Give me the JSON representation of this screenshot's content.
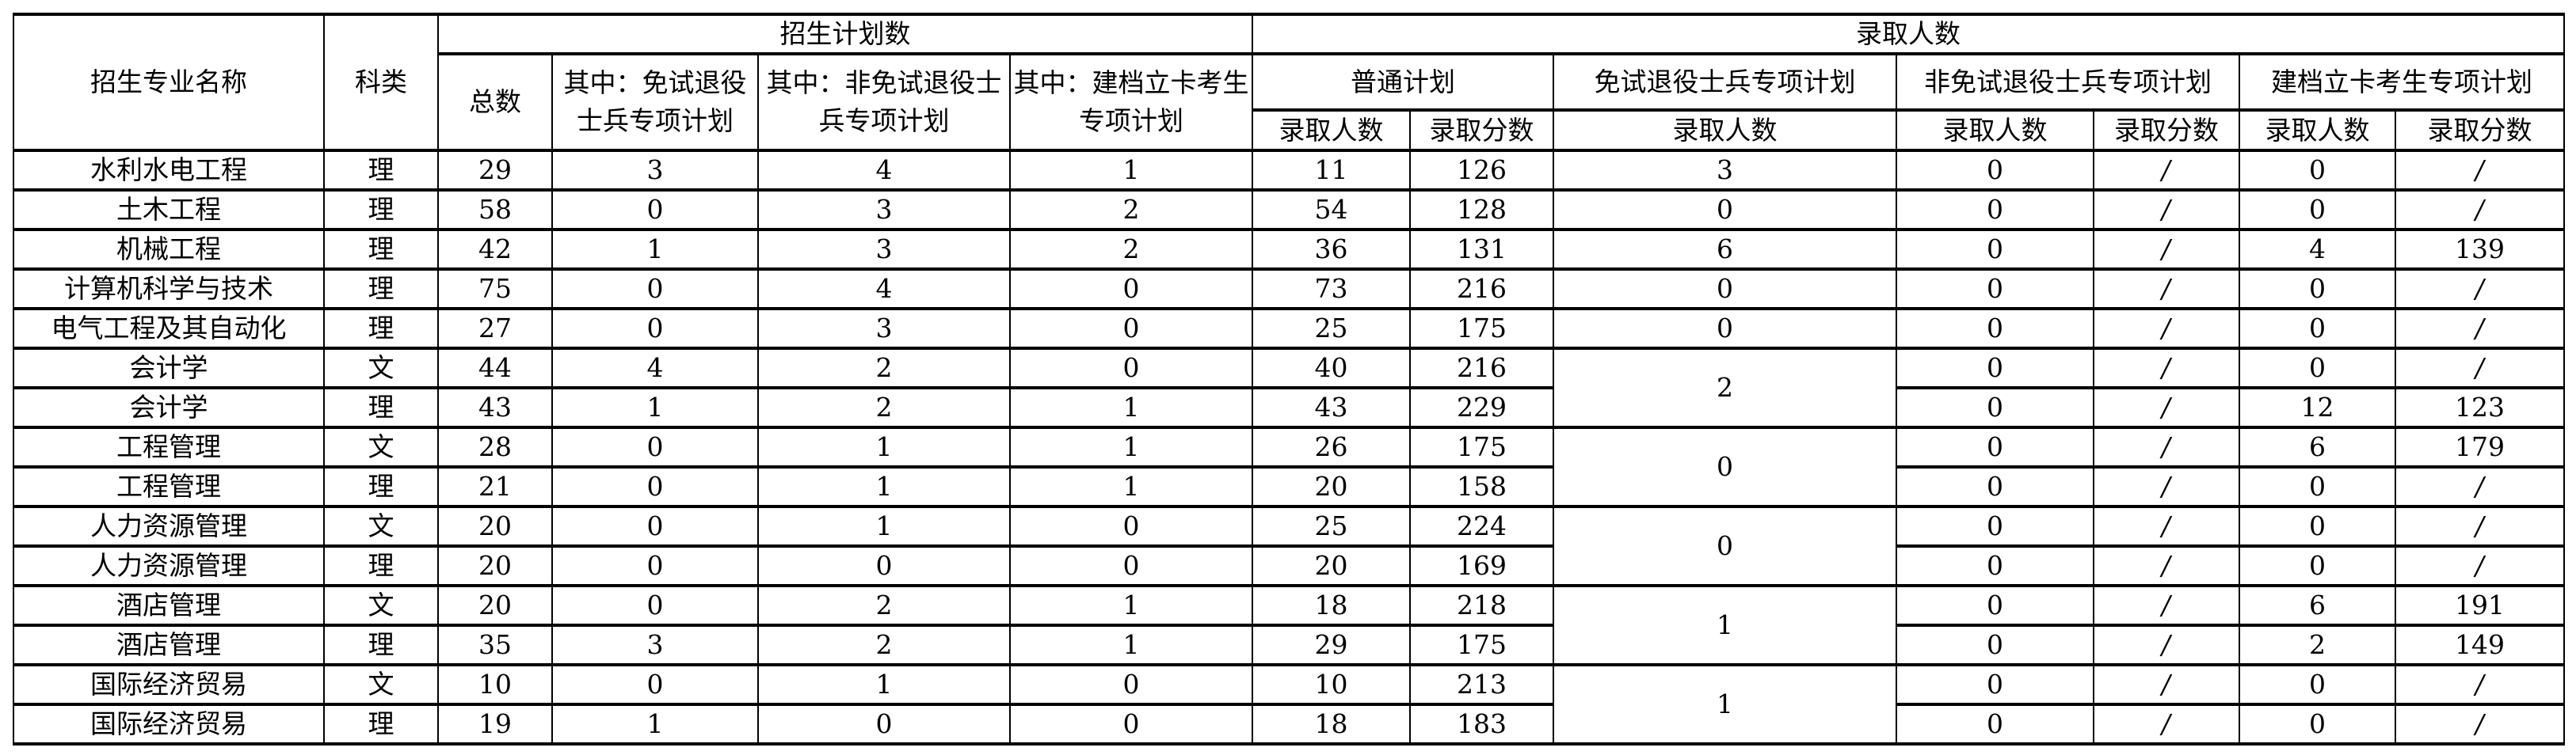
{
  "headers": {
    "major": "招生专业名称",
    "category": "科类",
    "plan_group": "招生计划数",
    "admit_group": "录取人数",
    "total": "总数",
    "plan_exempt": "其中：免试退役士兵专项计划",
    "plan_nonexempt": "其中：非免试退役士兵专项计划",
    "plan_poverty": "其中：建档立卡考生专项计划",
    "regular": "普通计划",
    "exempt": "免试退役士兵专项计划",
    "nonexempt": "非免试退役士兵专项计划",
    "poverty": "建档立卡考生专项计划",
    "admitted_count": "录取人数",
    "admitted_score": "录取分数"
  },
  "rows": [
    {
      "major": "水利水电工程",
      "cat": "理",
      "total": "29",
      "p_ex": "3",
      "p_nonex": "4",
      "p_pov": "1",
      "reg_n": "11",
      "reg_s": "126",
      "ex_n": "3",
      "nonex_n": "0",
      "nonex_s": "/",
      "pov_n": "0",
      "pov_s": "/"
    },
    {
      "major": "土木工程",
      "cat": "理",
      "total": "58",
      "p_ex": "0",
      "p_nonex": "3",
      "p_pov": "2",
      "reg_n": "54",
      "reg_s": "128",
      "ex_n": "0",
      "nonex_n": "0",
      "nonex_s": "/",
      "pov_n": "0",
      "pov_s": "/"
    },
    {
      "major": "机械工程",
      "cat": "理",
      "total": "42",
      "p_ex": "1",
      "p_nonex": "3",
      "p_pov": "2",
      "reg_n": "36",
      "reg_s": "131",
      "ex_n": "6",
      "nonex_n": "0",
      "nonex_s": "/",
      "pov_n": "4",
      "pov_s": "139"
    },
    {
      "major": "计算机科学与技术",
      "cat": "理",
      "total": "75",
      "p_ex": "0",
      "p_nonex": "4",
      "p_pov": "0",
      "reg_n": "73",
      "reg_s": "216",
      "ex_n": "0",
      "nonex_n": "0",
      "nonex_s": "/",
      "pov_n": "0",
      "pov_s": "/"
    },
    {
      "major": "电气工程及其自动化",
      "cat": "理",
      "total": "27",
      "p_ex": "0",
      "p_nonex": "3",
      "p_pov": "0",
      "reg_n": "25",
      "reg_s": "175",
      "ex_n": "0",
      "nonex_n": "0",
      "nonex_s": "/",
      "pov_n": "0",
      "pov_s": "/"
    },
    {
      "major": "会计学",
      "cat": "文",
      "total": "44",
      "p_ex": "4",
      "p_nonex": "2",
      "p_pov": "0",
      "reg_n": "40",
      "reg_s": "216",
      "ex_n": "2",
      "ex_span": 2,
      "nonex_n": "0",
      "nonex_s": "/",
      "pov_n": "0",
      "pov_s": "/"
    },
    {
      "major": "会计学",
      "cat": "理",
      "total": "43",
      "p_ex": "1",
      "p_nonex": "2",
      "p_pov": "1",
      "reg_n": "43",
      "reg_s": "229",
      "nonex_n": "0",
      "nonex_s": "/",
      "pov_n": "12",
      "pov_s": "123"
    },
    {
      "major": "工程管理",
      "cat": "文",
      "total": "28",
      "p_ex": "0",
      "p_nonex": "1",
      "p_pov": "1",
      "reg_n": "26",
      "reg_s": "175",
      "ex_n": "0",
      "ex_span": 2,
      "nonex_n": "0",
      "nonex_s": "/",
      "pov_n": "6",
      "pov_s": "179"
    },
    {
      "major": "工程管理",
      "cat": "理",
      "total": "21",
      "p_ex": "0",
      "p_nonex": "1",
      "p_pov": "1",
      "reg_n": "20",
      "reg_s": "158",
      "nonex_n": "0",
      "nonex_s": "/",
      "pov_n": "0",
      "pov_s": "/"
    },
    {
      "major": "人力资源管理",
      "cat": "文",
      "total": "20",
      "p_ex": "0",
      "p_nonex": "1",
      "p_pov": "0",
      "reg_n": "25",
      "reg_s": "224",
      "ex_n": "0",
      "ex_span": 2,
      "nonex_n": "0",
      "nonex_s": "/",
      "pov_n": "0",
      "pov_s": "/"
    },
    {
      "major": "人力资源管理",
      "cat": "理",
      "total": "20",
      "p_ex": "0",
      "p_nonex": "0",
      "p_pov": "0",
      "reg_n": "20",
      "reg_s": "169",
      "nonex_n": "0",
      "nonex_s": "/",
      "pov_n": "0",
      "pov_s": "/"
    },
    {
      "major": "酒店管理",
      "cat": "文",
      "total": "20",
      "p_ex": "0",
      "p_nonex": "2",
      "p_pov": "1",
      "reg_n": "18",
      "reg_s": "218",
      "ex_n": "1",
      "ex_span": 2,
      "nonex_n": "0",
      "nonex_s": "/",
      "pov_n": "6",
      "pov_s": "191"
    },
    {
      "major": "酒店管理",
      "cat": "理",
      "total": "35",
      "p_ex": "3",
      "p_nonex": "2",
      "p_pov": "1",
      "reg_n": "29",
      "reg_s": "175",
      "nonex_n": "0",
      "nonex_s": "/",
      "pov_n": "2",
      "pov_s": "149"
    },
    {
      "major": "国际经济贸易",
      "cat": "文",
      "total": "10",
      "p_ex": "0",
      "p_nonex": "1",
      "p_pov": "0",
      "reg_n": "10",
      "reg_s": "213",
      "ex_n": "1",
      "ex_span": 2,
      "nonex_n": "0",
      "nonex_s": "/",
      "pov_n": "0",
      "pov_s": "/"
    },
    {
      "major": "国际经济贸易",
      "cat": "理",
      "total": "19",
      "p_ex": "1",
      "p_nonex": "0",
      "p_pov": "0",
      "reg_n": "18",
      "reg_s": "183",
      "nonex_n": "0",
      "nonex_s": "/",
      "pov_n": "0",
      "pov_s": "/"
    }
  ]
}
